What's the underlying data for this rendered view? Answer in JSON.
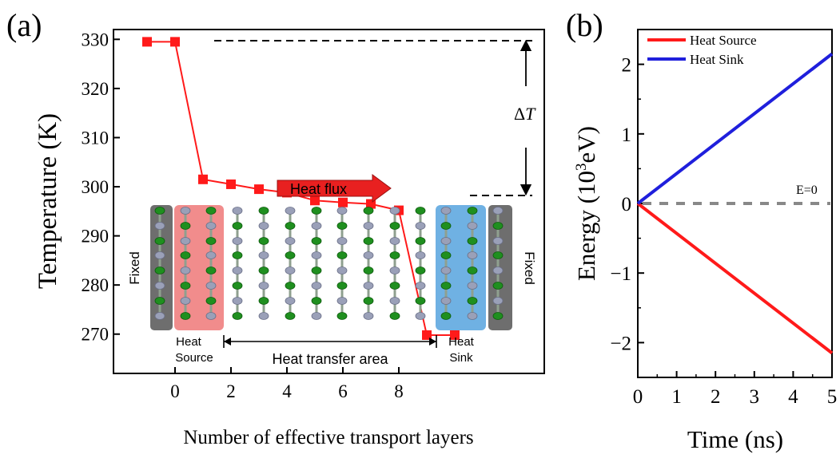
{
  "panel_a": {
    "panel_label": "(a)",
    "fixed_left": "Fixed",
    "fixed_right": "Fixed",
    "heat_source": "Heat\nSource",
    "heat_source_line1": "Heat",
    "heat_source_line2": "Source",
    "heat_sink_line1": "Heat",
    "heat_sink_line2": "Sink",
    "transfer_area": "Heat transfer area",
    "heat_flux": "Heat flux",
    "delta_t_symbol": "Δ",
    "delta_t_var": "T"
  },
  "panel_b": {
    "panel_label": "(b)",
    "zero_label": "E=0"
  },
  "colors": {
    "red": "#ff1a1a",
    "blue": "#1f1fdc",
    "gray_dash": "#888888",
    "source_box": "#f08080",
    "sink_box": "#5fa9e0",
    "fixed_box": "#555555",
    "atom_green": "#1f8f1f",
    "atom_gray": "#9aa0b8"
  },
  "chart_data": [
    {
      "type": "line",
      "title": "",
      "xlabel": "Number of effective transport layers",
      "ylabel": "Temperature (K)",
      "xlim": [
        -2.2,
        13.2
      ],
      "ylim": [
        262,
        332
      ],
      "xticks": [
        "0",
        "2",
        "4",
        "6",
        "8"
      ],
      "yticks": [
        "330",
        "320",
        "310",
        "300",
        "290",
        "280",
        "270"
      ],
      "series": [
        {
          "x": [
            -1,
            0,
            1,
            2,
            3,
            4,
            5,
            6,
            7,
            8,
            9,
            10
          ],
          "values": [
            329.5,
            329.5,
            301.5,
            300.5,
            299.5,
            298.8,
            297.2,
            296.8,
            296.5,
            295.2,
            269.8,
            269.8
          ]
        }
      ]
    },
    {
      "type": "line",
      "title": "",
      "xlabel": "Time (ns)",
      "ylabel": "Energy (10",
      "ylabel_sup": "3",
      "ylabel_unit": "eV)",
      "xlim": [
        0,
        5
      ],
      "ylim": [
        -2.5,
        2.5
      ],
      "xticks": [
        "0",
        "1",
        "2",
        "3",
        "4",
        "5"
      ],
      "yticks": [
        "2",
        "1",
        "0",
        "−1",
        "−2"
      ],
      "legend_position": "top-left",
      "series": [
        {
          "name": "Heat Source",
          "x": [
            0,
            5
          ],
          "values": [
            0,
            -2.15
          ]
        },
        {
          "name": "Heat Sink",
          "x": [
            0,
            5
          ],
          "values": [
            0,
            2.15
          ]
        }
      ]
    }
  ]
}
